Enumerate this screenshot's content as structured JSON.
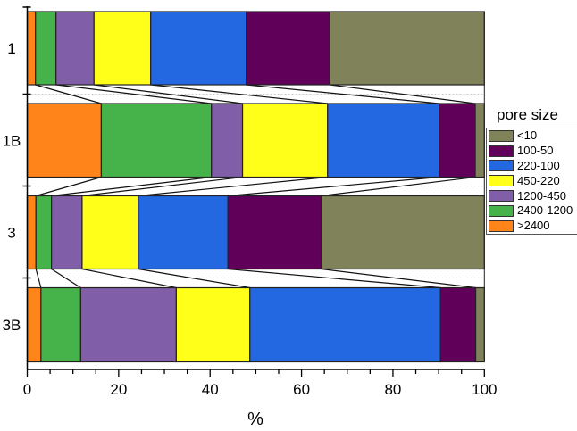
{
  "chart_data": {
    "type": "bar",
    "orientation": "horizontal",
    "stacked": true,
    "title": "",
    "xlabel": "%",
    "ylabel": "",
    "xlim": [
      0,
      100
    ],
    "x_ticks": [
      0,
      20,
      40,
      60,
      80,
      100
    ],
    "x_minor_tick_step": 5,
    "categories": [
      "1",
      "1B",
      "3",
      "3B"
    ],
    "connector_lines": true,
    "legend": {
      "title": "pore size",
      "position": "right"
    },
    "series": [
      {
        "name": ">2400",
        "color": "#ff8419",
        "values": [
          1.8,
          16.2,
          1.9,
          3.0
        ]
      },
      {
        "name": "2400-1200",
        "color": "#45b24a",
        "values": [
          4.5,
          24.1,
          3.4,
          8.7
        ]
      },
      {
        "name": "1200-450",
        "color": "#805fa8",
        "values": [
          8.3,
          6.8,
          6.7,
          20.9
        ]
      },
      {
        "name": "450-220",
        "color": "#ffff1a",
        "values": [
          12.4,
          18.6,
          12.3,
          16.1
        ]
      },
      {
        "name": "220-100",
        "color": "#2368e0",
        "values": [
          20.9,
          24.4,
          19.6,
          41.7
        ]
      },
      {
        "name": "100-50",
        "color": "#600058",
        "values": [
          18.3,
          7.9,
          20.4,
          7.7
        ]
      },
      {
        "name": "<10",
        "color": "#80825a",
        "values": [
          33.8,
          2.0,
          35.7,
          1.9
        ]
      }
    ]
  },
  "legend": {
    "title": "pore size",
    "items": [
      {
        "label": "<10",
        "color": "#80825a"
      },
      {
        "label": "100-50",
        "color": "#600058"
      },
      {
        "label": "220-100",
        "color": "#2368e0"
      },
      {
        "label": "450-220",
        "color": "#ffff1a"
      },
      {
        "label": "1200-450",
        "color": "#805fa8"
      },
      {
        "label": "2400-1200",
        "color": "#45b24a"
      },
      {
        "label": ">2400",
        "color": "#ff8419"
      }
    ]
  },
  "axis": {
    "x_title": "%",
    "x_tick_labels": [
      "0",
      "20",
      "40",
      "60",
      "80",
      "100"
    ]
  }
}
